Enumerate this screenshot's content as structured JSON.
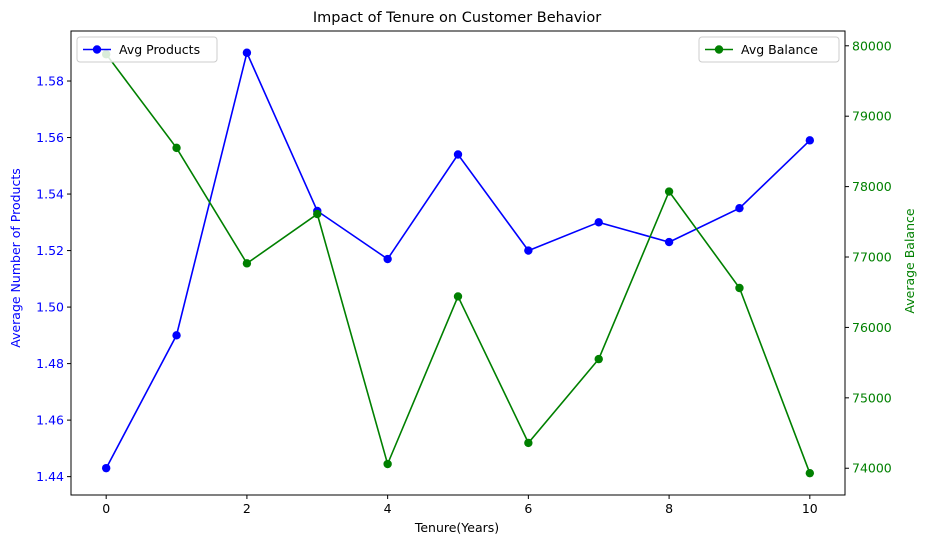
{
  "chart_data": {
    "type": "line",
    "title": "Impact of Tenure on Customer Behavior",
    "xlabel": "Tenure(Years)",
    "ylabel_left": "Average Number of Products",
    "ylabel_right": "Average Balance",
    "x": [
      0,
      1,
      2,
      3,
      4,
      5,
      6,
      7,
      8,
      9,
      10
    ],
    "xlim": [
      -0.5,
      10.5
    ],
    "ylim_left": [
      1.4335,
      1.5977
    ],
    "ylim_right": [
      73620,
      80210
    ],
    "x_ticks": [
      0,
      2,
      4,
      6,
      8,
      10
    ],
    "y_ticks_left": [
      "1.44",
      "1.46",
      "1.48",
      "1.50",
      "1.52",
      "1.54",
      "1.56",
      "1.58"
    ],
    "y_ticks_right": [
      "74000",
      "75000",
      "76000",
      "77000",
      "78000",
      "79000",
      "80000"
    ],
    "grid": false,
    "series": [
      {
        "name": "Avg Products",
        "axis": "left",
        "color": "#0000ff",
        "legend_position": "upper-left",
        "values": [
          1.443,
          1.49,
          1.59,
          1.534,
          1.517,
          1.554,
          1.52,
          1.53,
          1.523,
          1.535,
          1.559
        ]
      },
      {
        "name": "Avg Balance",
        "axis": "right",
        "color": "#008000",
        "legend_position": "upper-right",
        "values": [
          79880,
          78550,
          76910,
          77610,
          74060,
          76440,
          74360,
          75550,
          77930,
          76560,
          73930
        ]
      }
    ],
    "colors": {
      "left_axis": "#0000ff",
      "right_axis": "#008000"
    }
  }
}
